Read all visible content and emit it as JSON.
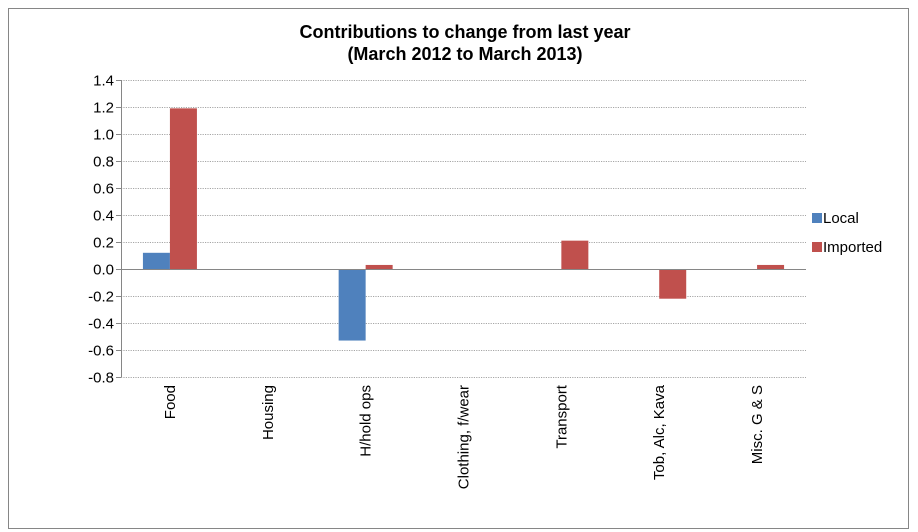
{
  "chart_data": {
    "type": "bar",
    "title": "Contributions to change from last year",
    "subtitle": "(March 2012 to March 2013)",
    "xlabel": "",
    "ylabel": "",
    "ylim": [
      -0.8,
      1.4
    ],
    "yticks": [
      1.4,
      1.2,
      1.0,
      0.8,
      0.6,
      0.4,
      0.2,
      0.0,
      -0.2,
      -0.4,
      -0.6,
      -0.8
    ],
    "ytick_labels": [
      "1.4",
      "1.2",
      "1.0",
      "0.8",
      "0.6",
      "0.4",
      "0.2",
      "0.0",
      "-0.2",
      "-0.4",
      "-0.6",
      "-0.8"
    ],
    "grid": true,
    "legend_position": "right",
    "categories": [
      "Food",
      "Housing",
      "H/hold ops",
      "Clothing, f/wear",
      "Transport",
      "Tob, Alc, Kava",
      "Misc. G & S"
    ],
    "series": [
      {
        "name": "Local",
        "color": "#4f81bd",
        "values": [
          0.12,
          0.0,
          -0.53,
          0.0,
          0.0,
          0.0,
          0.0
        ]
      },
      {
        "name": "Imported",
        "color": "#c0504d",
        "values": [
          1.19,
          0.0,
          0.03,
          0.0,
          0.21,
          -0.22,
          0.03
        ]
      }
    ]
  }
}
